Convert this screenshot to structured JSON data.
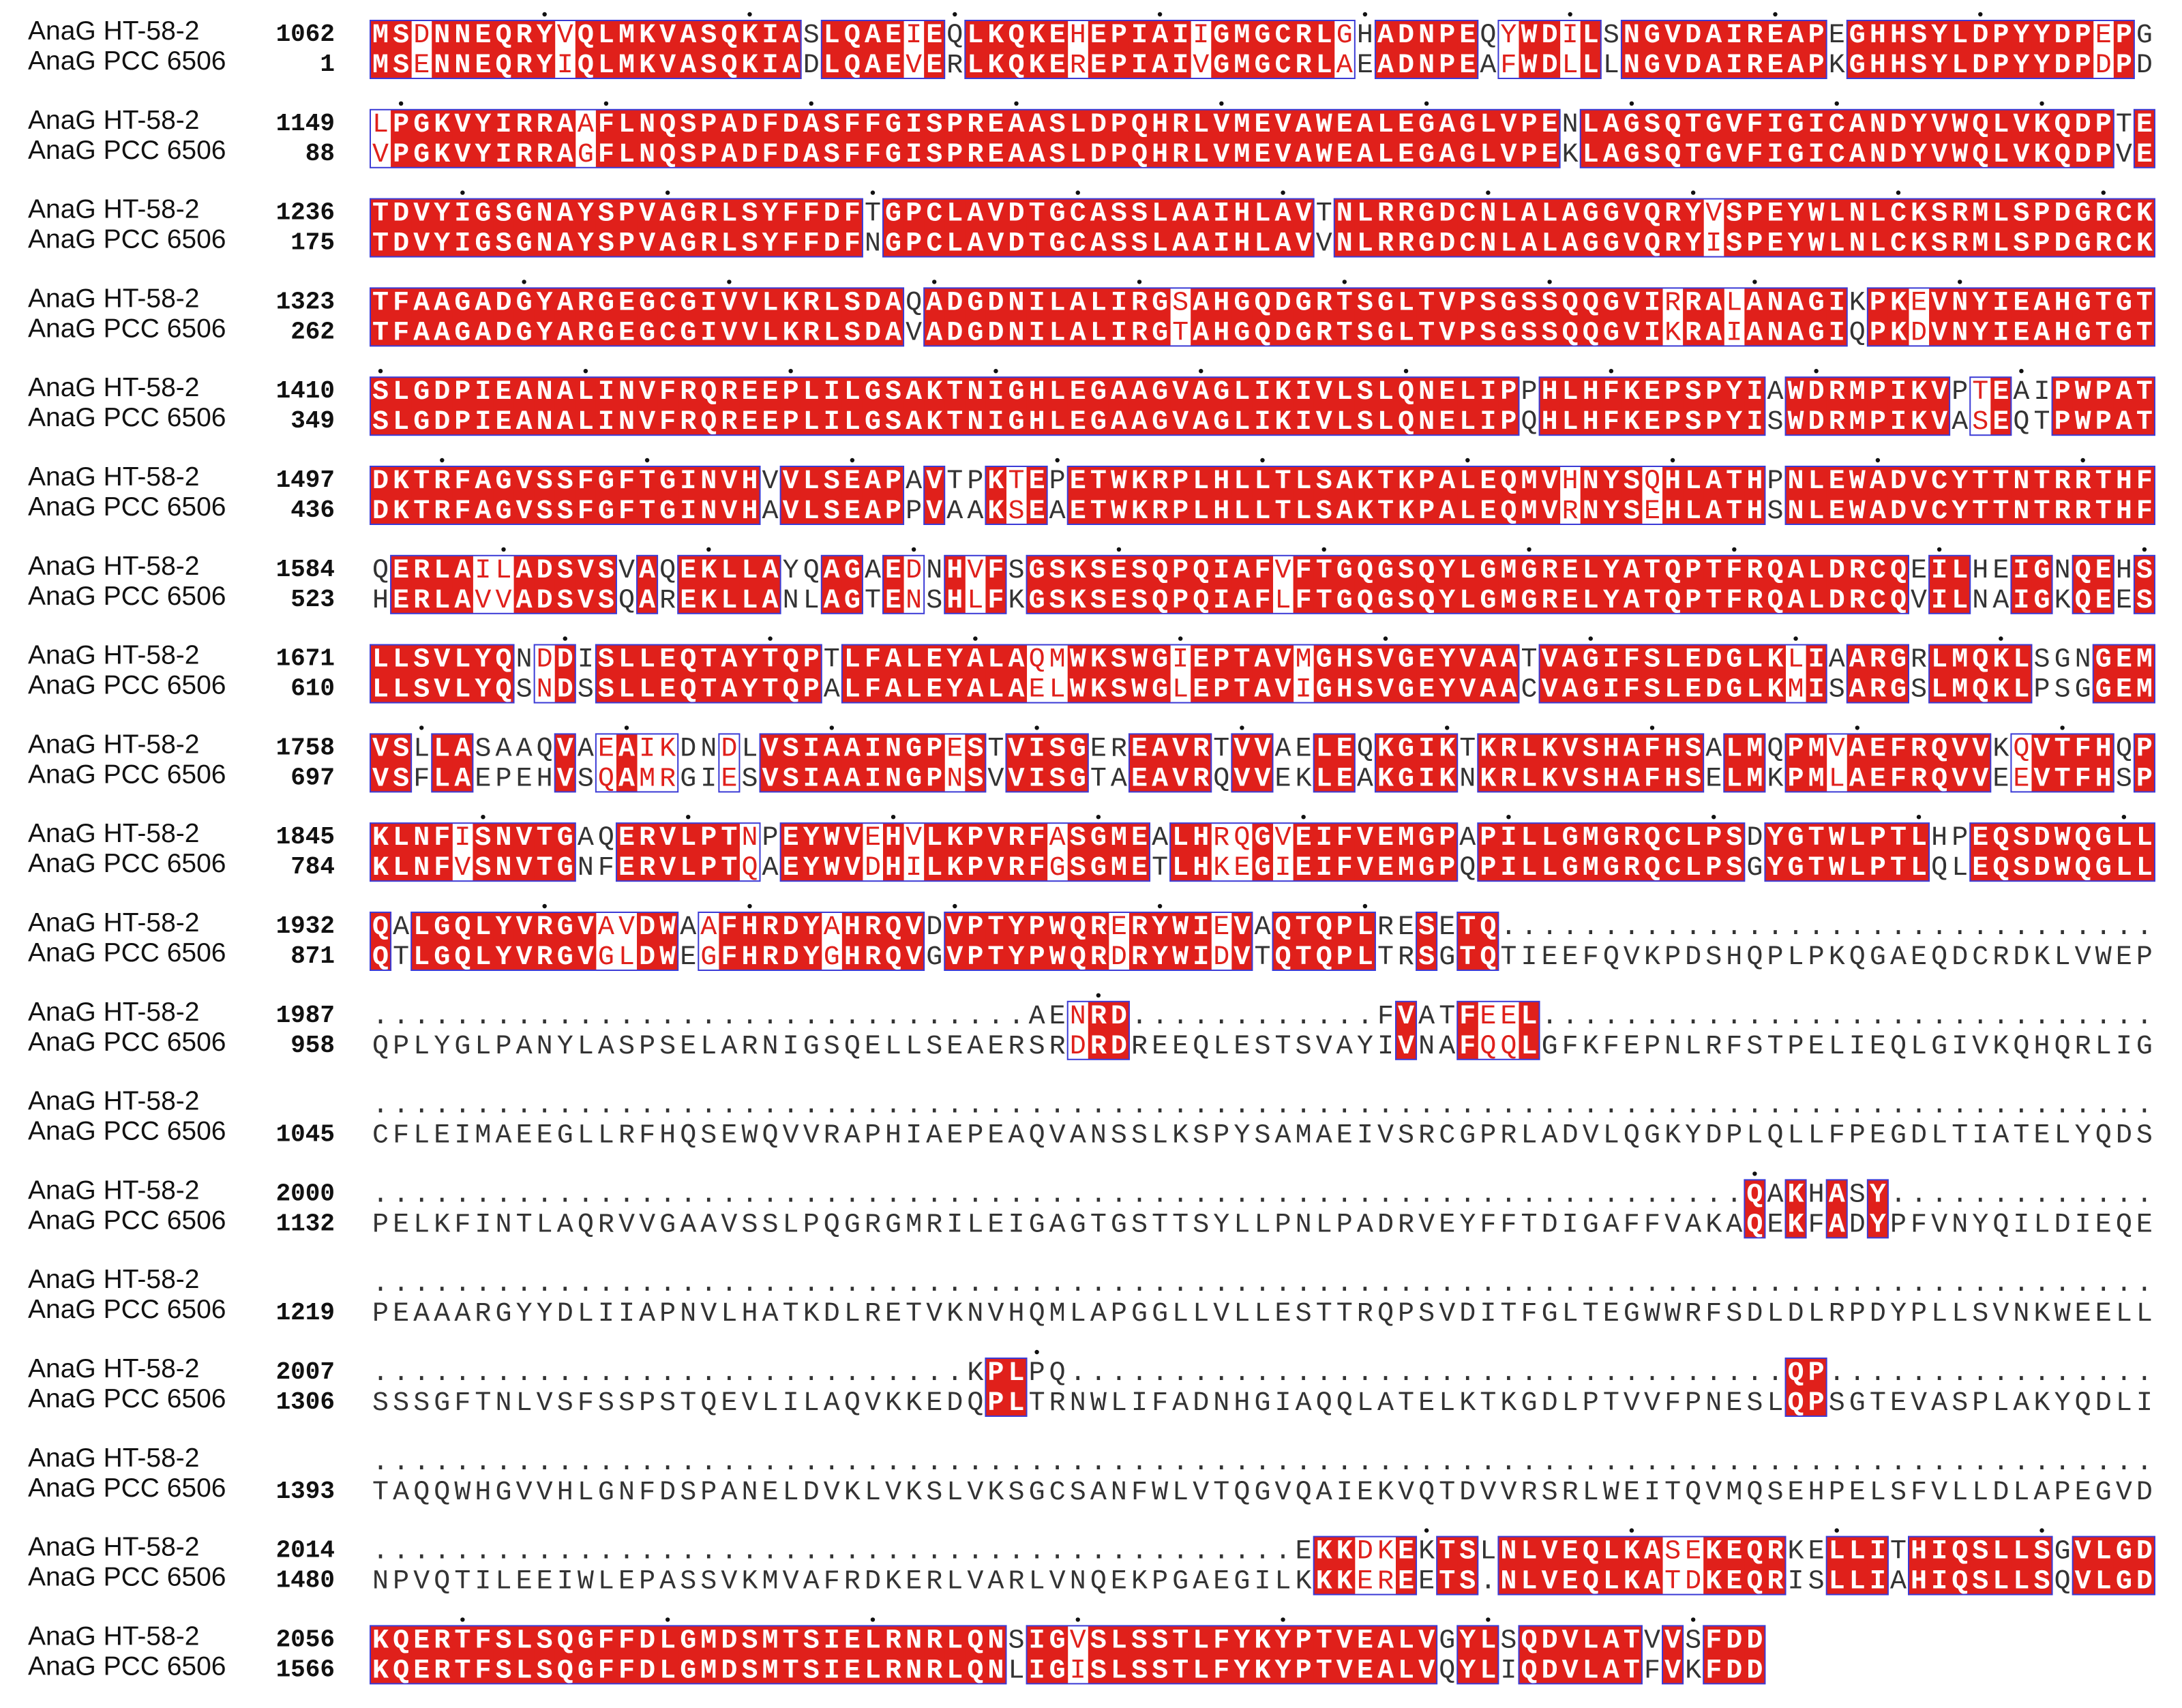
{
  "blocks": [
    {
      "rows": [
        {
          "name": "AnaG HT-58-2",
          "number": 1062,
          "sequence": "MSDNNEQRYVQLMKVASQKIASLQAEIEQLKQKEHEPIAIIGMGCRLGHADNPEQYWDILSNGVDAIREAPEGHHSYLDPYYDPEPG"
        },
        {
          "name": "AnaG PCC 6506",
          "number": 1,
          "sequence": "MSENNEQRYIQLMKVASQKIADLQAEVERLKQKEREPIAIVGMGCRLAEADNPEAFWDLLLNGVDAIREAPKGHHSYLDPYYDPDPD"
        }
      ]
    },
    {
      "rows": [
        {
          "name": "AnaG HT-58-2",
          "number": 1149,
          "sequence": "LPGKVYIRRAAFLNQSPADFDASFFGISPREAASLDPQHRLVMEVAWEALEGAGLVPENLAGSQTGVFIGICANDYVWQLVKQDPTE"
        },
        {
          "name": "AnaG PCC 6506",
          "number": 88,
          "sequence": "VPGKVYIRRAGFLNQSPADFDASFFGISPREAASLDPQHRLVMEVAWEALEGAGLVPEKLAGSQTGVFIGICANDYVWQLVKQDPVE"
        }
      ]
    },
    {
      "rows": [
        {
          "name": "AnaG HT-58-2",
          "number": 1236,
          "sequence": "TDVYIGSGNAYSPVAGRLSYFFDFTGPCLAVDTGCASSLAAIHLAVTNLRRGDCNLALAGGVQRYVSPEYWLNLCKSRMLSPDGRCK"
        },
        {
          "name": "AnaG PCC 6506",
          "number": 175,
          "sequence": "TDVYIGSGNAYSPVAGRLSYFFDFNGPCLAVDTGCASSLAAIHLAVVNLRRGDCNLALAGGVQRYISPEYWLNLCKSRMLSPDGRCK"
        }
      ]
    },
    {
      "rows": [
        {
          "name": "AnaG HT-58-2",
          "number": 1323,
          "sequence": "TFAAGADGYARGEGCGIVVLKRLSDAQADGDNILALIRGSAHGQDGRTSGLTVPSGSSQQGVIRRALANAGIKPKEVNYIEAHGTGT"
        },
        {
          "name": "AnaG PCC 6506",
          "number": 262,
          "sequence": "TFAAGADGYARGEGCGIVVLKRLSDAVADGDNILALIRGTAHGQDGRTSGLTVPSGSSQQGVIKRAIANAGIQPKDVNYIEAHGTGT"
        }
      ]
    },
    {
      "rows": [
        {
          "name": "AnaG HT-58-2",
          "number": 1410,
          "sequence": "SLGDPIEANALINVFRQREEPLILGSAKTNIGHLEGAAGVAGLIKIVLSLQNELIPPHLHFKEPSPYIAWDRMPIKVPTEAIPWPAT"
        },
        {
          "name": "AnaG PCC 6506",
          "number": 349,
          "sequence": "SLGDPIEANALINVFRQREEPLILGSAKTNIGHLEGAAGVAGLIKIVLSLQNELIPQHLHFKEPSPYISWDRMPIKVASEQTPWPAT"
        }
      ]
    },
    {
      "rows": [
        {
          "name": "AnaG HT-58-2",
          "number": 1497,
          "sequence": "DKTRFAGVSSFGFTGINVHVVLSEAPAVTPKTEPETWKRPLHLLTLSAKTKPALEQMVHNYSQHLATHPNLEWADVCYTTNTRRTHF"
        },
        {
          "name": "AnaG PCC 6506",
          "number": 436,
          "sequence": "DKTRFAGVSSFGFTGINVHAVLSEAPPVAAKSEAETWKRPLHLLTLSAKTKPALEQMVRNYSEHLATHSNLEWADVCYTTNTRRTHF"
        }
      ]
    },
    {
      "rows": [
        {
          "name": "AnaG HT-58-2",
          "number": 1584,
          "sequence": "QERLAILADSVSVAQEKLLAYQAGAEDNHVFSGSKSESQPQIAFVFTGQGSQYLGMGRELYATQPTFRQALDRCQEILHEIGNQEHS"
        },
        {
          "name": "AnaG PCC 6506",
          "number": 523,
          "sequence": "HERLAVVADSVSQAREKLLANLAGTENSHLFKGSKSESQPQIAFLFTGQGSQYLGMGRELYATQPTFRQALDRCQVILNAIGKQEES"
        }
      ]
    },
    {
      "rows": [
        {
          "name": "AnaG HT-58-2",
          "number": 1671,
          "sequence": "LLSVLYQNDDISLLEQTAYTQPTLFALEYALAQMWKSWGIEPTAVMGHSVGEYVAATVAGIFSLEDGLKLIAARGRLMQKLSGNGEM"
        },
        {
          "name": "AnaG PCC 6506",
          "number": 610,
          "sequence": "LLSVLYQSNDSSLLEQTAYTQPALFALEYALAELWKSWGLEPTAVIGHSVGEYVAACVAGIFSLEDGLKMISARGSLMQKLPSGGEM"
        }
      ]
    },
    {
      "rows": [
        {
          "name": "AnaG HT-58-2",
          "number": 1758,
          "sequence": "VSLLASAAQVAEAIKDNDLVSIAAINGPESTVISGEREAVRTVVAELEQKGIKTKRLKVSHAFHSALMQPMVAEFRQVVKQVTFHQP"
        },
        {
          "name": "AnaG PCC 6506",
          "number": 697,
          "sequence": "VSFLAEPEHVSQAMRGIESVSIAAINGPNSVVISGTAEAVRQVVEKLEAKGIKNKRLKVSHAFHSELMKPMLAEFRQVVEEVTFHSP"
        }
      ]
    },
    {
      "rows": [
        {
          "name": "AnaG HT-58-2",
          "number": 1845,
          "sequence": "KLNFISNVTGAQERVLPTNPEYWVEHVLKPVRFASGMEALHRQGVEIFVEMGPAPILLGMGRQCLPSDYGTWLPTLHPEQSDWQGLL"
        },
        {
          "name": "AnaG PCC 6506",
          "number": 784,
          "sequence": "KLNFVSNVTGNFERVLPTQAEYWVDHILKPVRFGSGMETLHKEGIEIFVEMGPQPILLGMGRQCLPSGYGTWLPTLQLEQSDWQGLL"
        }
      ]
    },
    {
      "rows": [
        {
          "name": "AnaG HT-58-2",
          "number": 1932,
          "sequence": "QALGQLYVRGVAVDWAAFHRDYAHRQVDVPTYPWQRERYWIEVAQTQPLRESETQ................................"
        },
        {
          "name": "AnaG PCC 6506",
          "number": 871,
          "sequence": "QTLGQLYVRGVGLDWEGFHRDYGHRQVGVPTYPWQRDRYWIDVTQTQPLTRSGTQTIEEFQVKPDSHQPLPKQGAEQDCRDKLVWEP"
        }
      ]
    },
    {
      "rows": [
        {
          "name": "AnaG HT-58-2",
          "number": 1987,
          "sequence": "................................AENRD............FVATFEEL.............................."
        },
        {
          "name": "AnaG PCC 6506",
          "number": 958,
          "sequence": "QPLYGLPANYLASPSELARNIGSQELLSEAERSRDRDREEQLESTSVAYIVNAFQQLGFKFEPNLRFSTPELIEQLGIVKQHQRLIG"
        }
      ]
    },
    {
      "rows": [
        {
          "name": "AnaG HT-58-2",
          "number": null,
          "sequence": "......................................................................................."
        },
        {
          "name": "AnaG PCC 6506",
          "number": 1045,
          "sequence": "CFLEIMAEEGLLRFHQSEWQVVRAPHIAEPEAQVANSSLKSPYSAMAEIVSRCGPRLADVLQGKYDPLQLLFPEGDLTIATELYQDS"
        }
      ]
    },
    {
      "rows": [
        {
          "name": "AnaG HT-58-2",
          "number": 2000,
          "sequence": "...................................................................QAKHASY............."
        },
        {
          "name": "AnaG PCC 6506",
          "number": 1132,
          "sequence": "PELKFINTLAQRVVGAAVSSLPQGRGMRILEIGAGTGSTTSYLLPNLPADRVEYFFTDIGAFFVAKAQEKFADYPFVNYQILDIEQE"
        }
      ]
    },
    {
      "rows": [
        {
          "name": "AnaG HT-58-2",
          "number": null,
          "sequence": "......................................................................................."
        },
        {
          "name": "AnaG PCC 6506",
          "number": 1219,
          "sequence": "PEAAARGYYDLIIAPNVLHATKDLRETVKNVHQMLAPGGLLVLLESTTRQPSVDITFGLTEGWWRFSDLDLRPDYPLLSVNKWEELL"
        }
      ]
    },
    {
      "rows": [
        {
          "name": "AnaG HT-58-2",
          "number": 2007,
          "sequence": ".............................KPLPQ...................................QP................"
        },
        {
          "name": "AnaG PCC 6506",
          "number": 1306,
          "sequence": "SSSGFTNLVSFSSPSTQEVLILAQVKKEDQPLTRNWLIFADNHGIAQQLATELKTKGDLPTVVFPNESLQPSGTEVASPLAKYQDLI"
        }
      ]
    },
    {
      "rows": [
        {
          "name": "AnaG HT-58-2",
          "number": null,
          "sequence": "......................................................................................."
        },
        {
          "name": "AnaG PCC 6506",
          "number": 1393,
          "sequence": "TAQQWHGVVHLGNFDSPANELDVKLVKSLVKSGCSANFWLVTQGVQAIEKVQTDVVRSRLWEITQVMQSEHPELSFVLLDLAPEGVD"
        }
      ]
    },
    {
      "rows": [
        {
          "name": "AnaG HT-58-2",
          "number": 2014,
          "sequence": ".............................................EKKDKEKTSLNLVEQLKASEKEQRKELLITHIQSLLSGVLGD"
        },
        {
          "name": "AnaG PCC 6506",
          "number": 1480,
          "sequence": "NPVQTILEEIWLEPASSVKMVAFRDKERLVARLVNQEKPGAEGILKKKEREETS.NLVEQLKATDKEQRISLLIAHIQSLLSQVLGD"
        }
      ]
    },
    {
      "rows": [
        {
          "name": "AnaG HT-58-2",
          "number": 2056,
          "sequence": "KQERTFSLSQGFFDLGMDSMTSIELRNRLQNSIGVSLSSTLFYKYPTVEALVGYLSQDVLATVVSFDD"
        },
        {
          "name": "AnaG PCC 6506",
          "number": 1566,
          "sequence": "KQERTFSLSQGFFDLGMDSMTSIELRNRLQNLIGISLSSTLFYKYPTVEALVQYLIQDVLATFVKFDD"
        }
      ]
    }
  ]
}
